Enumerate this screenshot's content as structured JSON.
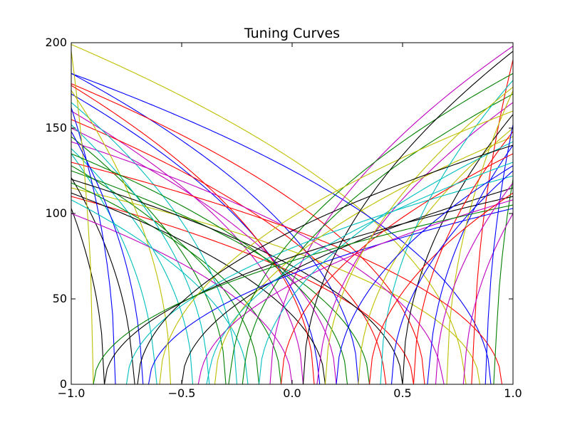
{
  "chart_data": {
    "type": "line",
    "title": "Tuning Curves",
    "xlabel": "",
    "ylabel": "",
    "xlim": [
      -1.0,
      1.0
    ],
    "ylim": [
      0,
      200
    ],
    "xticks": [
      -1.0,
      -0.5,
      0.0,
      0.5,
      1.0
    ],
    "xtick_labels": [
      "−1.0",
      "−0.5",
      "0.0",
      "0.5",
      "1.0"
    ],
    "yticks": [
      0,
      50,
      100,
      150,
      200
    ],
    "ytick_labels": [
      "0",
      "50",
      "100",
      "150",
      "200"
    ],
    "grid": false,
    "legend": "none",
    "color_cycle": [
      "#0000ff",
      "#008000",
      "#ff0000",
      "#00bfbf",
      "#bf00bf",
      "#bfbf00",
      "#000000"
    ],
    "curve_model": "rectified linear/sqrt: rate = gain * max(0, e*x - x0)^0.5, e = encoder direction",
    "series": [
      {
        "encoder": -1,
        "x_intercept": 0.12,
        "rate_at_edge": 170
      },
      {
        "encoder": -1,
        "x_intercept": -0.3,
        "rate_at_edge": 145
      },
      {
        "encoder": -1,
        "x_intercept": 0.55,
        "rate_at_edge": 110
      },
      {
        "encoder": -1,
        "x_intercept": -0.62,
        "rate_at_edge": 135
      },
      {
        "encoder": -1,
        "x_intercept": 0.05,
        "rate_at_edge": 160
      },
      {
        "encoder": -1,
        "x_intercept": 0.85,
        "rate_at_edge": 115
      },
      {
        "encoder": -1,
        "x_intercept": -0.85,
        "rate_at_edge": 103
      },
      {
        "encoder": -1,
        "x_intercept": 0.3,
        "rate_at_edge": 182
      },
      {
        "encoder": -1,
        "x_intercept": -0.15,
        "rate_at_edge": 128
      },
      {
        "encoder": -1,
        "x_intercept": 0.6,
        "rate_at_edge": 176
      },
      {
        "encoder": -1,
        "x_intercept": -0.45,
        "rate_at_edge": 138
      },
      {
        "encoder": -1,
        "x_intercept": 0.2,
        "rate_at_edge": 150
      },
      {
        "encoder": -1,
        "x_intercept": 0.78,
        "rate_at_edge": 199
      },
      {
        "encoder": -1,
        "x_intercept": -0.72,
        "rate_at_edge": 121
      },
      {
        "encoder": -1,
        "x_intercept": 0.9,
        "rate_at_edge": 182
      },
      {
        "encoder": -1,
        "x_intercept": -0.05,
        "rate_at_edge": 118
      },
      {
        "encoder": -1,
        "x_intercept": 0.42,
        "rate_at_edge": 155
      },
      {
        "encoder": -1,
        "x_intercept": -0.25,
        "rate_at_edge": 165
      },
      {
        "encoder": -1,
        "x_intercept": 0.68,
        "rate_at_edge": 142
      },
      {
        "encoder": -1,
        "x_intercept": -0.55,
        "rate_at_edge": 172
      },
      {
        "encoder": -1,
        "x_intercept": 0.15,
        "rate_at_edge": 112
      },
      {
        "encoder": -1,
        "x_intercept": -0.8,
        "rate_at_edge": 162
      },
      {
        "encoder": -1,
        "x_intercept": 0.35,
        "rate_at_edge": 125
      },
      {
        "encoder": -1,
        "x_intercept": 0.95,
        "rate_at_edge": 130
      },
      {
        "encoder": -1,
        "x_intercept": -0.38,
        "rate_at_edge": 152
      },
      {
        "encoder": -1,
        "x_intercept": 0.0,
        "rate_at_edge": 100
      },
      {
        "encoder": -1,
        "x_intercept": -0.9,
        "rate_at_edge": 195
      },
      {
        "encoder": -1,
        "x_intercept": 0.5,
        "rate_at_edge": 120
      },
      {
        "encoder": -1,
        "x_intercept": -0.68,
        "rate_at_edge": 148
      },
      {
        "encoder": -1,
        "x_intercept": 0.25,
        "rate_at_edge": 135
      },
      {
        "encoder": -1,
        "x_intercept": 0.1,
        "rate_at_edge": 175
      },
      {
        "encoder": -1,
        "x_intercept": -0.2,
        "rate_at_edge": 108
      },
      {
        "encoder": 1,
        "x_intercept": -0.1,
        "rate_at_edge": 198
      },
      {
        "encoder": 1,
        "x_intercept": 0.3,
        "rate_at_edge": 150
      },
      {
        "encoder": 1,
        "x_intercept": -0.5,
        "rate_at_edge": 115
      },
      {
        "encoder": 1,
        "x_intercept": 0.62,
        "rate_at_edge": 140
      },
      {
        "encoder": 1,
        "x_intercept": -0.22,
        "rate_at_edge": 170
      },
      {
        "encoder": 1,
        "x_intercept": 0.82,
        "rate_at_edge": 190
      },
      {
        "encoder": 1,
        "x_intercept": -0.75,
        "rate_at_edge": 122
      },
      {
        "encoder": 1,
        "x_intercept": 0.12,
        "rate_at_edge": 165
      },
      {
        "encoder": 1,
        "x_intercept": -0.35,
        "rate_at_edge": 145
      },
      {
        "encoder": 1,
        "x_intercept": 0.5,
        "rate_at_edge": 158
      },
      {
        "encoder": 1,
        "x_intercept": -0.65,
        "rate_at_edge": 103
      },
      {
        "encoder": 1,
        "x_intercept": 0.92,
        "rate_at_edge": 120
      },
      {
        "encoder": 1,
        "x_intercept": -0.05,
        "rate_at_edge": 135
      },
      {
        "encoder": 1,
        "x_intercept": 0.4,
        "rate_at_edge": 178
      },
      {
        "encoder": 1,
        "x_intercept": -0.42,
        "rate_at_edge": 108
      },
      {
        "encoder": 1,
        "x_intercept": 0.7,
        "rate_at_edge": 172
      },
      {
        "encoder": 1,
        "x_intercept": -0.85,
        "rate_at_edge": 110
      },
      {
        "encoder": 1,
        "x_intercept": 0.2,
        "rate_at_edge": 128
      },
      {
        "encoder": 1,
        "x_intercept": -0.28,
        "rate_at_edge": 182
      },
      {
        "encoder": 1,
        "x_intercept": 0.55,
        "rate_at_edge": 148
      },
      {
        "encoder": 1,
        "x_intercept": -0.15,
        "rate_at_edge": 142
      },
      {
        "encoder": 1,
        "x_intercept": 0.78,
        "rate_at_edge": 100
      },
      {
        "encoder": 1,
        "x_intercept": -0.6,
        "rate_at_edge": 160
      },
      {
        "encoder": 1,
        "x_intercept": 0.05,
        "rate_at_edge": 195
      },
      {
        "encoder": 1,
        "x_intercept": 0.88,
        "rate_at_edge": 152
      },
      {
        "encoder": 1,
        "x_intercept": -0.9,
        "rate_at_edge": 105
      },
      {
        "encoder": 1,
        "x_intercept": 0.35,
        "rate_at_edge": 112
      },
      {
        "encoder": 1,
        "x_intercept": -0.38,
        "rate_at_edge": 130
      },
      {
        "encoder": 1,
        "x_intercept": 0.65,
        "rate_at_edge": 118
      },
      {
        "encoder": 1,
        "x_intercept": 0.15,
        "rate_at_edge": 174
      },
      {
        "encoder": 1,
        "x_intercept": -0.7,
        "rate_at_edge": 140
      },
      {
        "encoder": 1,
        "x_intercept": 0.45,
        "rate_at_edge": 125
      }
    ]
  }
}
